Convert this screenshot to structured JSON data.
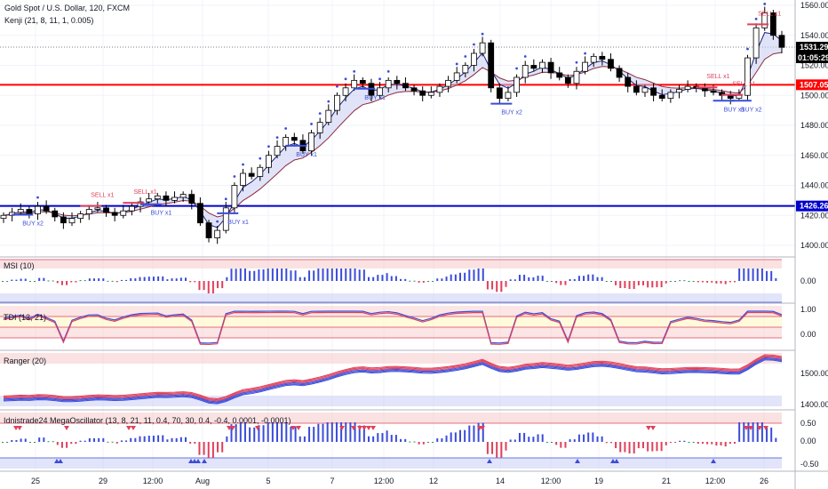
{
  "header": {
    "symbol_title": "Gold Spot / U.S. Dollar, 120, FXCM",
    "indicator_title": "Kenji (21, 8, 11, 1, 0.005)"
  },
  "price_tags": {
    "last": "1531.29",
    "countdown": "01:05:29",
    "red_line": "1507.05",
    "blue_line": "1426.26"
  },
  "colors": {
    "up": "#ffffff",
    "down": "#000000",
    "red_level": "#ff0000",
    "blue_level": "#0000cc",
    "buy_signal": "#3b4cd9",
    "sell_signal": "#e0405a",
    "osc_pos": "#3b4cd9",
    "osc_neg": "#e0405a",
    "osc_neutral": "#2e8b57"
  },
  "panes": {
    "msi": {
      "title": "MSI (10)",
      "tick": "0.00"
    },
    "tdi": {
      "title": "TDI (13, 21)",
      "ticks": [
        "1.00",
        "0.00"
      ]
    },
    "ranger": {
      "title": "Ranger (20)",
      "ticks": [
        "1500.00",
        "1400.00"
      ]
    },
    "mega": {
      "title": "Idnistrade24 MegaOscillator (13, 8, 21, 11, 0.4, 70, 30, 0.4, -0.4, 0.0001, -0.0001)",
      "ticks": [
        "0.50",
        "0.00",
        "-0.50"
      ]
    }
  },
  "signals": [
    {
      "text": "BUY x2",
      "type": "buy",
      "idx": 2
    },
    {
      "text": "SELL x1",
      "type": "sell",
      "idx": 10
    },
    {
      "text": "SELL x1",
      "type": "sell",
      "idx": 15
    },
    {
      "text": "BUY x1",
      "type": "buy",
      "idx": 17
    },
    {
      "text": "BUY x1",
      "type": "buy",
      "idx": 26
    },
    {
      "text": "BUY x1",
      "type": "buy",
      "idx": 34
    },
    {
      "text": "BUY x1",
      "type": "buy",
      "idx": 42
    },
    {
      "text": "BUY x2",
      "type": "buy",
      "idx": 58
    },
    {
      "text": "SELL x1",
      "type": "sell",
      "idx": 82
    },
    {
      "text": "BUY x1",
      "type": "buy",
      "idx": 84
    },
    {
      "text": "SELL x1",
      "type": "sell",
      "idx": 85
    },
    {
      "text": "BUY x2",
      "type": "buy",
      "idx": 86
    },
    {
      "text": "SELL x1",
      "type": "sell",
      "idx": 88
    }
  ],
  "chart_data": {
    "type": "candlestick",
    "title": "Gold Spot / U.S. Dollar, 120, FXCM",
    "x_tick_labels": [
      "25",
      "29",
      "12:00",
      "Aug",
      "5",
      "7",
      "12:00",
      "12",
      "14",
      "12:00",
      "19",
      "21",
      "12:00",
      "26"
    ],
    "y_ticks": [
      1400,
      1420,
      1440,
      1460,
      1480,
      1500,
      1520,
      1540,
      1560
    ],
    "ylim": [
      1388,
      1566
    ],
    "levels": [
      {
        "value": 1507.05,
        "color": "#ff0000"
      },
      {
        "value": 1426.26,
        "color": "#0000cc"
      }
    ],
    "last_price": 1531.29,
    "closes": [
      1420,
      1422,
      1424,
      1421,
      1426,
      1423,
      1419,
      1415,
      1418,
      1421,
      1424,
      1425,
      1422,
      1420,
      1423,
      1426,
      1429,
      1431,
      1433,
      1430,
      1432,
      1434,
      1428,
      1415,
      1405,
      1410,
      1425,
      1440,
      1448,
      1446,
      1452,
      1460,
      1466,
      1472,
      1470,
      1463,
      1475,
      1482,
      1490,
      1500,
      1505,
      1510,
      1508,
      1500,
      1505,
      1510,
      1508,
      1505,
      1503,
      1500,
      1502,
      1506,
      1510,
      1515,
      1520,
      1528,
      1535,
      1505,
      1498,
      1502,
      1512,
      1520,
      1518,
      1522,
      1515,
      1512,
      1508,
      1516,
      1522,
      1526,
      1524,
      1518,
      1512,
      1506,
      1502,
      1505,
      1500,
      1498,
      1502,
      1504,
      1506,
      1505,
      1503,
      1502,
      1500,
      1498,
      1500,
      1525,
      1545,
      1555,
      1540,
      1532
    ]
  }
}
